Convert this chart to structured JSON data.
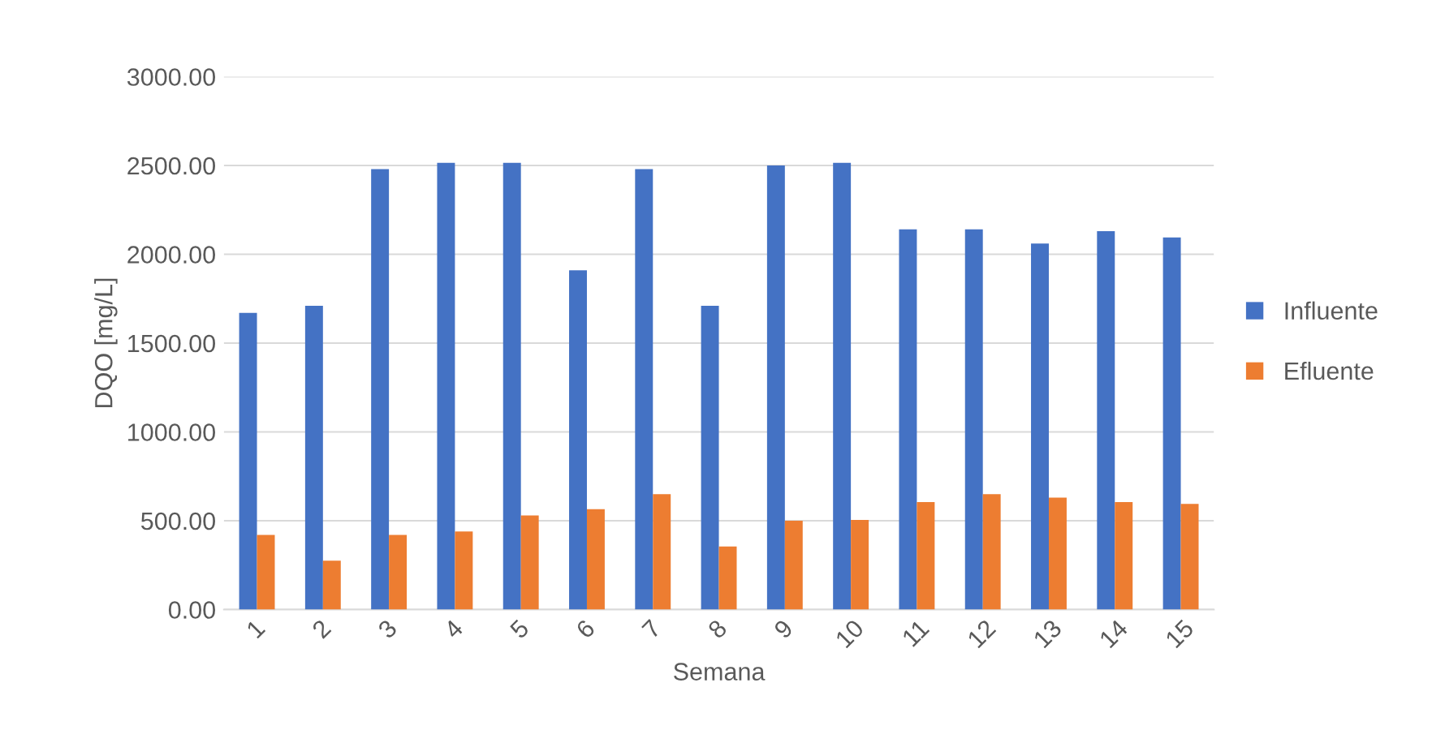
{
  "chart_data": {
    "type": "bar",
    "xlabel": "Semana",
    "ylabel": "DQO [mg/L]",
    "categories": [
      "1",
      "2",
      "3",
      "4",
      "5",
      "6",
      "7",
      "8",
      "9",
      "10",
      "11",
      "12",
      "13",
      "14",
      "15"
    ],
    "series": [
      {
        "name": "Influente",
        "color": "#4472c4",
        "values": [
          1670,
          1710,
          2480,
          2515,
          2515,
          1910,
          2480,
          1710,
          2500,
          2515,
          2140,
          2140,
          2060,
          2130,
          2095
        ]
      },
      {
        "name": "Efluente",
        "color": "#ed7d31",
        "values": [
          420,
          275,
          420,
          440,
          530,
          565,
          650,
          355,
          500,
          505,
          605,
          650,
          630,
          605,
          595
        ]
      }
    ],
    "ylim": [
      0,
      3000
    ],
    "yticks": [
      {
        "value": 0,
        "label": "0.00"
      },
      {
        "value": 500,
        "label": "500.00"
      },
      {
        "value": 1000,
        "label": "1000.00"
      },
      {
        "value": 1500,
        "label": "1500.00"
      },
      {
        "value": 2000,
        "label": "2000.00"
      },
      {
        "value": 2500,
        "label": "2500.00"
      },
      {
        "value": 3000,
        "label": "3000.00"
      }
    ],
    "grid": "y",
    "legend": "right"
  }
}
